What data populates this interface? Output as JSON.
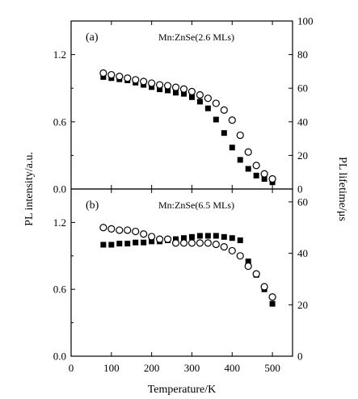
{
  "chart_data": {
    "type": "scatter",
    "xlabel": "Temperature/K",
    "ylabel_left": "PL intensity/a.u.",
    "ylabel_right": "PL lifetime/μs",
    "xlim": [
      0,
      550
    ],
    "x_ticks": [
      0,
      100,
      200,
      300,
      400,
      500
    ],
    "x_tick_labels": [
      "0",
      "100",
      "200",
      "300",
      "400",
      "500"
    ],
    "panels": [
      {
        "label": "(a)",
        "annotation": "Mn:ZnSe(2.6 MLs)",
        "ylim_left": [
          0,
          1.5
        ],
        "left_ticks": [
          0,
          0.6,
          1.2
        ],
        "left_tick_labels": [
          "0.0",
          "0.6",
          "1.2"
        ],
        "ylim_right": [
          0,
          100
        ],
        "right_ticks": [
          0,
          20,
          40,
          60,
          80,
          100
        ],
        "right_tick_labels": [
          "0",
          "20",
          "40",
          "60",
          "80",
          "100"
        ],
        "series": [
          {
            "marker": "square-filled",
            "axis": "left",
            "x": [
              80,
              100,
              120,
              140,
              160,
              180,
              200,
              220,
              240,
              260,
              280,
              300,
              320,
              340,
              360,
              380,
              400,
              420,
              440,
              460,
              480,
              500
            ],
            "y": [
              1.0,
              0.99,
              0.98,
              0.97,
              0.95,
              0.93,
              0.91,
              0.89,
              0.88,
              0.86,
              0.85,
              0.82,
              0.78,
              0.72,
              0.62,
              0.5,
              0.37,
              0.26,
              0.18,
              0.12,
              0.09,
              0.06
            ]
          },
          {
            "marker": "circle-open",
            "axis": "right",
            "x": [
              80,
              100,
              120,
              140,
              160,
              180,
              200,
              220,
              240,
              260,
              280,
              300,
              320,
              340,
              360,
              380,
              400,
              420,
              440,
              460,
              480,
              500
            ],
            "y": [
              69,
              68,
              67,
              66,
              65,
              64,
              63,
              62,
              61.5,
              60.5,
              59.5,
              58,
              56,
              54,
              51,
              47,
              41,
              32,
              22,
              14,
              9,
              6
            ]
          }
        ]
      },
      {
        "label": "(b)",
        "annotation": "Mn:ZnSe(6.5 MLs)",
        "ylim_left": [
          0,
          1.5
        ],
        "left_ticks": [
          0,
          0.6,
          1.2
        ],
        "left_tick_labels": [
          "0.0",
          "0.6",
          "1.2"
        ],
        "ylim_right": [
          0,
          65
        ],
        "right_ticks": [
          0,
          20,
          40,
          60
        ],
        "right_tick_labels": [
          "0",
          "20",
          "40",
          "60"
        ],
        "series": [
          {
            "marker": "square-filled",
            "axis": "left",
            "x": [
              80,
              100,
              120,
              140,
              160,
              180,
              200,
              220,
              240,
              260,
              280,
              300,
              320,
              340,
              360,
              380,
              400,
              420,
              440,
              460,
              480,
              500
            ],
            "y": [
              1.0,
              1.0,
              1.01,
              1.01,
              1.02,
              1.02,
              1.03,
              1.03,
              1.04,
              1.05,
              1.06,
              1.07,
              1.08,
              1.08,
              1.08,
              1.07,
              1.06,
              1.04,
              0.85,
              0.73,
              0.6,
              0.47
            ]
          },
          {
            "marker": "circle-open",
            "axis": "right",
            "x": [
              80,
              100,
              120,
              140,
              160,
              180,
              200,
              220,
              240,
              260,
              280,
              300,
              320,
              340,
              360,
              380,
              400,
              420,
              440,
              460,
              480,
              500
            ],
            "y": [
              50,
              49.5,
              49,
              49,
              48.5,
              47.5,
              46.5,
              45.5,
              45.5,
              44,
              44,
              44,
              44,
              44,
              43.5,
              42.5,
              41,
              39,
              35,
              32,
              27,
              23
            ]
          }
        ]
      }
    ]
  }
}
